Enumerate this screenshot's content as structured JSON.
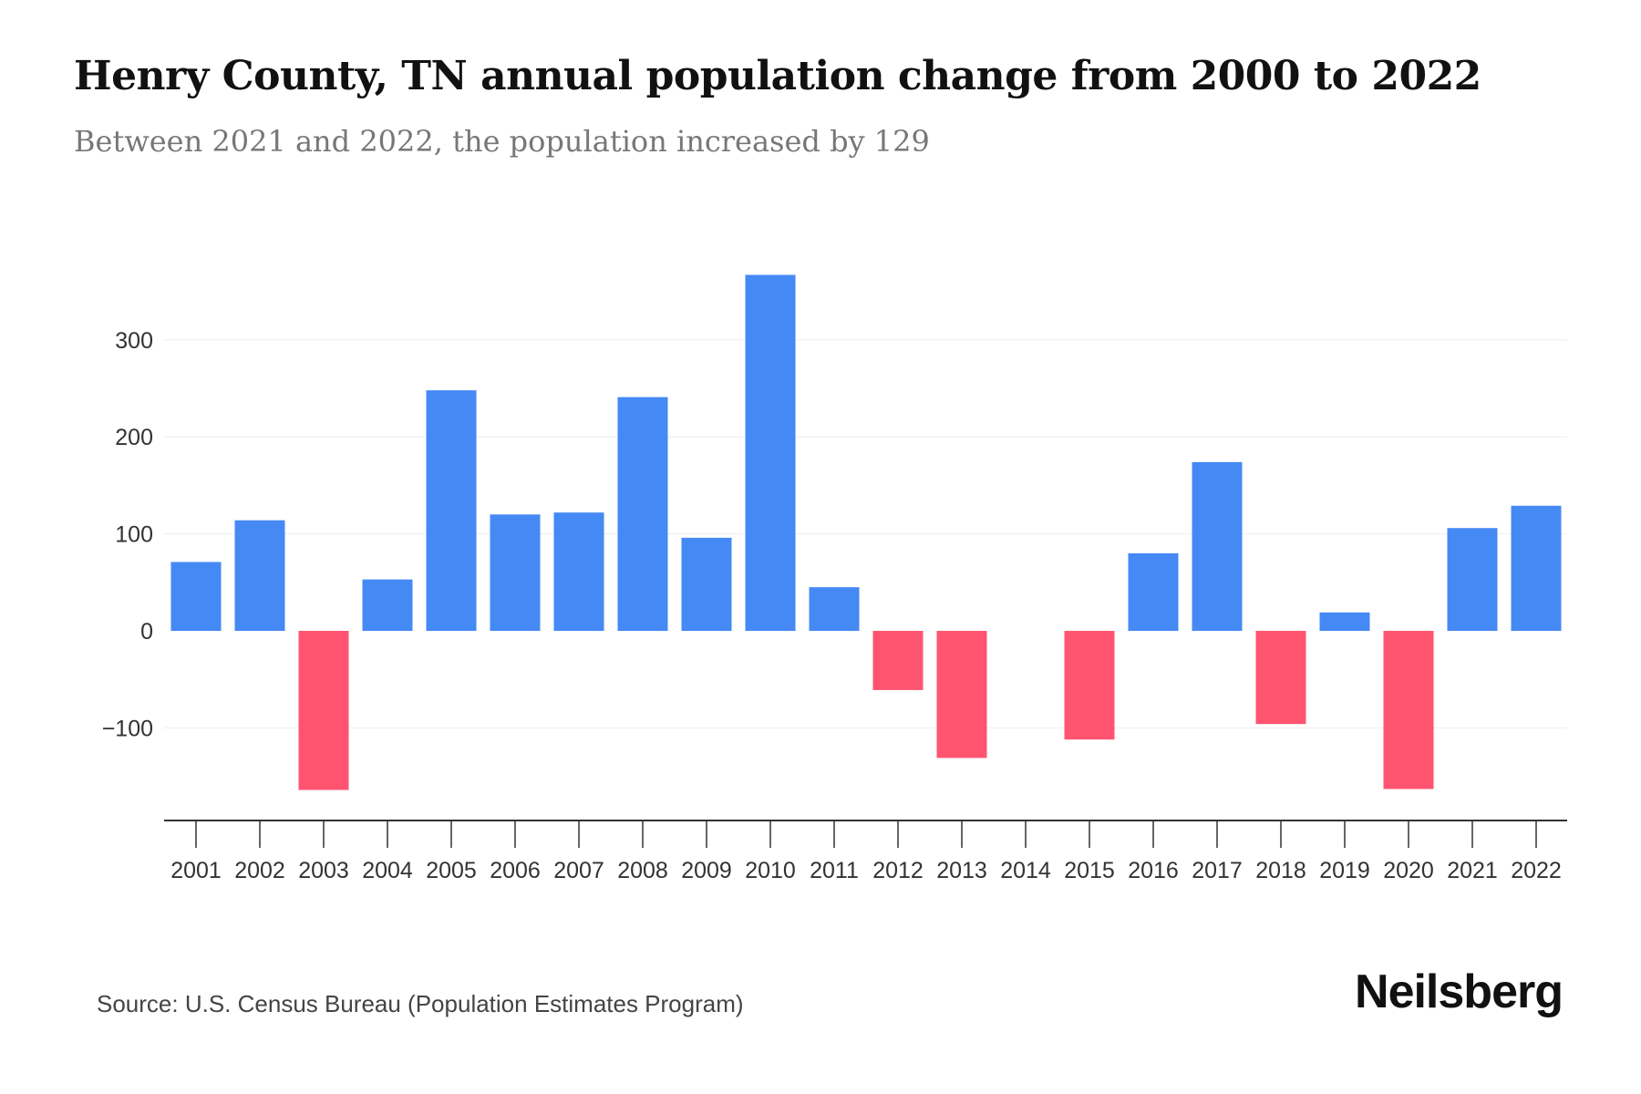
{
  "title": "Henry County, TN annual population change from 2000 to 2022",
  "subtitle": "Between 2021 and 2022, the population increased by 129",
  "source": "Source: U.S. Census Bureau (Population Estimates Program)",
  "brand": "Neilsberg",
  "colors": {
    "positive": "#4589F5",
    "negative": "#FF5470",
    "grid": "#eeeeee",
    "axis": "#333333"
  },
  "chart_data": {
    "type": "bar",
    "title": "Henry County, TN annual population change from 2000 to 2022",
    "xlabel": "",
    "ylabel": "",
    "ylim": [
      -195,
      370
    ],
    "yticks": [
      -100,
      0,
      100,
      200,
      300
    ],
    "ytick_labels": [
      "−100",
      "0",
      "100",
      "200",
      "300"
    ],
    "grid": true,
    "categories": [
      "2001",
      "2002",
      "2003",
      "2004",
      "2005",
      "2006",
      "2007",
      "2008",
      "2009",
      "2010",
      "2011",
      "2012",
      "2013",
      "2014",
      "2015",
      "2016",
      "2017",
      "2018",
      "2019",
      "2020",
      "2021",
      "2022"
    ],
    "values": [
      71,
      114,
      -164,
      53,
      248,
      120,
      122,
      241,
      96,
      367,
      45,
      -61,
      -131,
      0,
      -112,
      80,
      174,
      -96,
      19,
      -163,
      106,
      129
    ]
  }
}
